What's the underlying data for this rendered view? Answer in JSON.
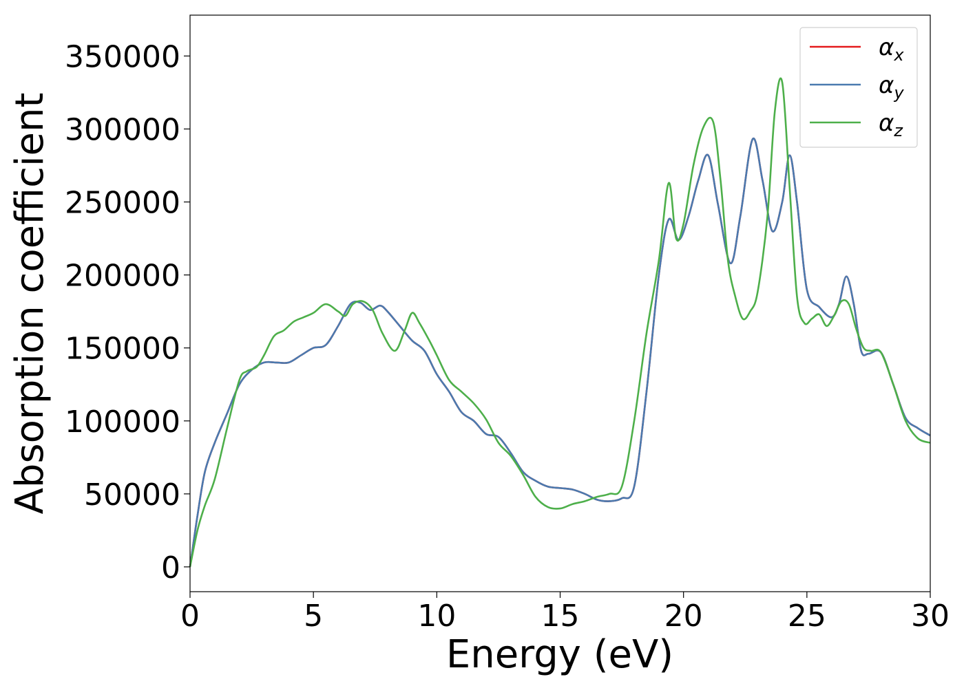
{
  "chart_data": {
    "type": "line",
    "xlabel": "Energy (eV)",
    "ylabel": "Absorption coefficient",
    "xlim": [
      0,
      30
    ],
    "ylim": [
      -17000,
      378000
    ],
    "xticks": [
      0,
      5,
      10,
      15,
      20,
      25,
      30
    ],
    "yticks": [
      0,
      50000,
      100000,
      150000,
      200000,
      250000,
      300000,
      350000
    ],
    "grid": false,
    "legend_position": "top-right",
    "series": [
      {
        "name": "α_x",
        "legend_base": "α",
        "legend_sub": "x",
        "color": "#e41a1c",
        "x": [
          0,
          0.3,
          0.6,
          1.0,
          1.5,
          2.0,
          2.5,
          3.0,
          3.5,
          4.0,
          4.5,
          5.0,
          5.5,
          6.0,
          6.5,
          6.9,
          7.3,
          7.7,
          8.0,
          8.5,
          9.0,
          9.5,
          10.0,
          10.5,
          11.0,
          11.5,
          12.0,
          12.5,
          13.0,
          13.5,
          14.0,
          14.5,
          15.0,
          15.5,
          16.0,
          16.5,
          17.0,
          17.5,
          18.0,
          18.5,
          19.0,
          19.4,
          19.8,
          20.2,
          20.6,
          21.0,
          21.4,
          21.9,
          22.3,
          22.8,
          23.2,
          23.6,
          24.0,
          24.3,
          24.6,
          25.0,
          25.5,
          26.0,
          26.3,
          26.6,
          26.9,
          27.2,
          27.5,
          28.0,
          28.5,
          29.0,
          29.5,
          30.0
        ],
        "values": [
          0,
          35000,
          65000,
          85000,
          105000,
          125000,
          135000,
          140000,
          140000,
          140000,
          145000,
          150000,
          152000,
          165000,
          180000,
          181000,
          176000,
          179000,
          175000,
          165000,
          155000,
          148000,
          132000,
          120000,
          106000,
          100000,
          91000,
          89000,
          78000,
          65000,
          59000,
          55000,
          54000,
          53000,
          50000,
          46000,
          45000,
          47000,
          55000,
          120000,
          200000,
          238000,
          224000,
          240000,
          265000,
          282000,
          248000,
          208000,
          240000,
          293000,
          265000,
          230000,
          250000,
          282000,
          250000,
          190000,
          178000,
          171000,
          180000,
          199000,
          180000,
          148000,
          146000,
          147000,
          125000,
          102000,
          95000,
          90000
        ]
      },
      {
        "name": "α_y",
        "legend_base": "α",
        "legend_sub": "y",
        "color": "#4a7aaf",
        "x": [
          0,
          0.3,
          0.6,
          1.0,
          1.5,
          2.0,
          2.5,
          3.0,
          3.5,
          4.0,
          4.5,
          5.0,
          5.5,
          6.0,
          6.5,
          6.9,
          7.3,
          7.7,
          8.0,
          8.5,
          9.0,
          9.5,
          10.0,
          10.5,
          11.0,
          11.5,
          12.0,
          12.5,
          13.0,
          13.5,
          14.0,
          14.5,
          15.0,
          15.5,
          16.0,
          16.5,
          17.0,
          17.5,
          18.0,
          18.5,
          19.0,
          19.4,
          19.8,
          20.2,
          20.6,
          21.0,
          21.4,
          21.9,
          22.3,
          22.8,
          23.2,
          23.6,
          24.0,
          24.3,
          24.6,
          25.0,
          25.5,
          26.0,
          26.3,
          26.6,
          26.9,
          27.2,
          27.5,
          28.0,
          28.5,
          29.0,
          29.5,
          30.0
        ],
        "values": [
          0,
          35000,
          65000,
          85000,
          105000,
          125000,
          135000,
          140000,
          140000,
          140000,
          145000,
          150000,
          152000,
          165000,
          180000,
          181000,
          176000,
          179000,
          175000,
          165000,
          155000,
          148000,
          132000,
          120000,
          106000,
          100000,
          91000,
          89000,
          78000,
          65000,
          59000,
          55000,
          54000,
          53000,
          50000,
          46000,
          45000,
          47000,
          55000,
          120000,
          200000,
          238000,
          224000,
          240000,
          265000,
          282000,
          248000,
          208000,
          240000,
          293000,
          265000,
          230000,
          250000,
          282000,
          250000,
          190000,
          178000,
          171000,
          180000,
          199000,
          180000,
          148000,
          146000,
          147000,
          125000,
          102000,
          95000,
          90000
        ]
      },
      {
        "name": "α_z",
        "legend_base": "α",
        "legend_sub": "z",
        "color": "#4daf4a",
        "x": [
          0,
          0.3,
          0.6,
          1.0,
          1.5,
          2.0,
          2.3,
          2.7,
          3.0,
          3.4,
          3.8,
          4.2,
          4.6,
          5.0,
          5.5,
          6.0,
          6.3,
          6.6,
          7.0,
          7.4,
          7.8,
          8.3,
          8.7,
          9.0,
          9.3,
          9.7,
          10.0,
          10.5,
          11.0,
          11.5,
          12.0,
          12.5,
          13.0,
          13.5,
          14.0,
          14.5,
          15.0,
          15.5,
          16.0,
          16.5,
          17.0,
          17.5,
          18.0,
          18.5,
          19.0,
          19.4,
          19.7,
          20.0,
          20.4,
          20.8,
          21.2,
          21.5,
          21.8,
          22.1,
          22.4,
          22.7,
          23.0,
          23.4,
          23.7,
          24.0,
          24.3,
          24.6,
          24.9,
          25.2,
          25.5,
          25.8,
          26.1,
          26.4,
          26.7,
          27.0,
          27.3,
          27.6,
          28.0,
          28.5,
          29.0,
          29.5,
          30.0
        ],
        "values": [
          0,
          25000,
          42000,
          60000,
          95000,
          128000,
          134000,
          137000,
          145000,
          158000,
          162000,
          168000,
          171000,
          174000,
          180000,
          175000,
          172000,
          180000,
          182000,
          176000,
          160000,
          148000,
          162000,
          174000,
          167000,
          155000,
          145000,
          128000,
          120000,
          112000,
          101000,
          85000,
          76000,
          63000,
          48000,
          41000,
          40000,
          43000,
          45000,
          48000,
          50000,
          55000,
          100000,
          160000,
          210000,
          263000,
          225000,
          235000,
          275000,
          301000,
          305000,
          265000,
          210000,
          185000,
          170000,
          175000,
          188000,
          240000,
          312000,
          332000,
          260000,
          185000,
          167000,
          170000,
          173000,
          165000,
          172000,
          182000,
          180000,
          163000,
          150000,
          148000,
          147000,
          125000,
          100000,
          88000,
          85000
        ]
      }
    ]
  }
}
